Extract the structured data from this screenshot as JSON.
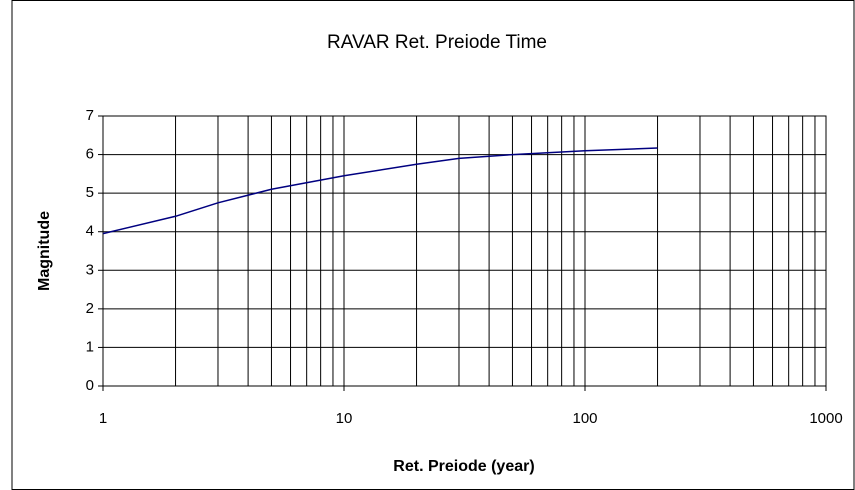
{
  "chart_data": {
    "type": "line",
    "title": "RAVAR Ret. Preiode Time",
    "x_label": "Ret. Preiode (year)",
    "y_label": "Magnitude",
    "x_scale": "log",
    "xlim": [
      1,
      1000
    ],
    "xticks": [
      1,
      10,
      100,
      1000
    ],
    "xgrid": [
      2,
      3,
      4,
      5,
      6,
      7,
      8,
      9,
      20,
      30,
      40,
      50,
      60,
      70,
      80,
      90,
      200,
      300,
      400,
      500,
      600,
      700,
      800,
      900
    ],
    "ylim": [
      0,
      7
    ],
    "yticks": [
      0,
      1,
      2,
      3,
      4,
      5,
      6,
      7
    ],
    "grid": true,
    "series": [
      {
        "name": "Magnitude",
        "color": "#000080",
        "x": [
          1,
          2,
          3,
          5,
          10,
          20,
          30,
          50,
          100,
          200
        ],
        "values": [
          3.95,
          4.4,
          4.75,
          5.1,
          5.45,
          5.75,
          5.9,
          6.0,
          6.1,
          6.17
        ]
      }
    ]
  }
}
